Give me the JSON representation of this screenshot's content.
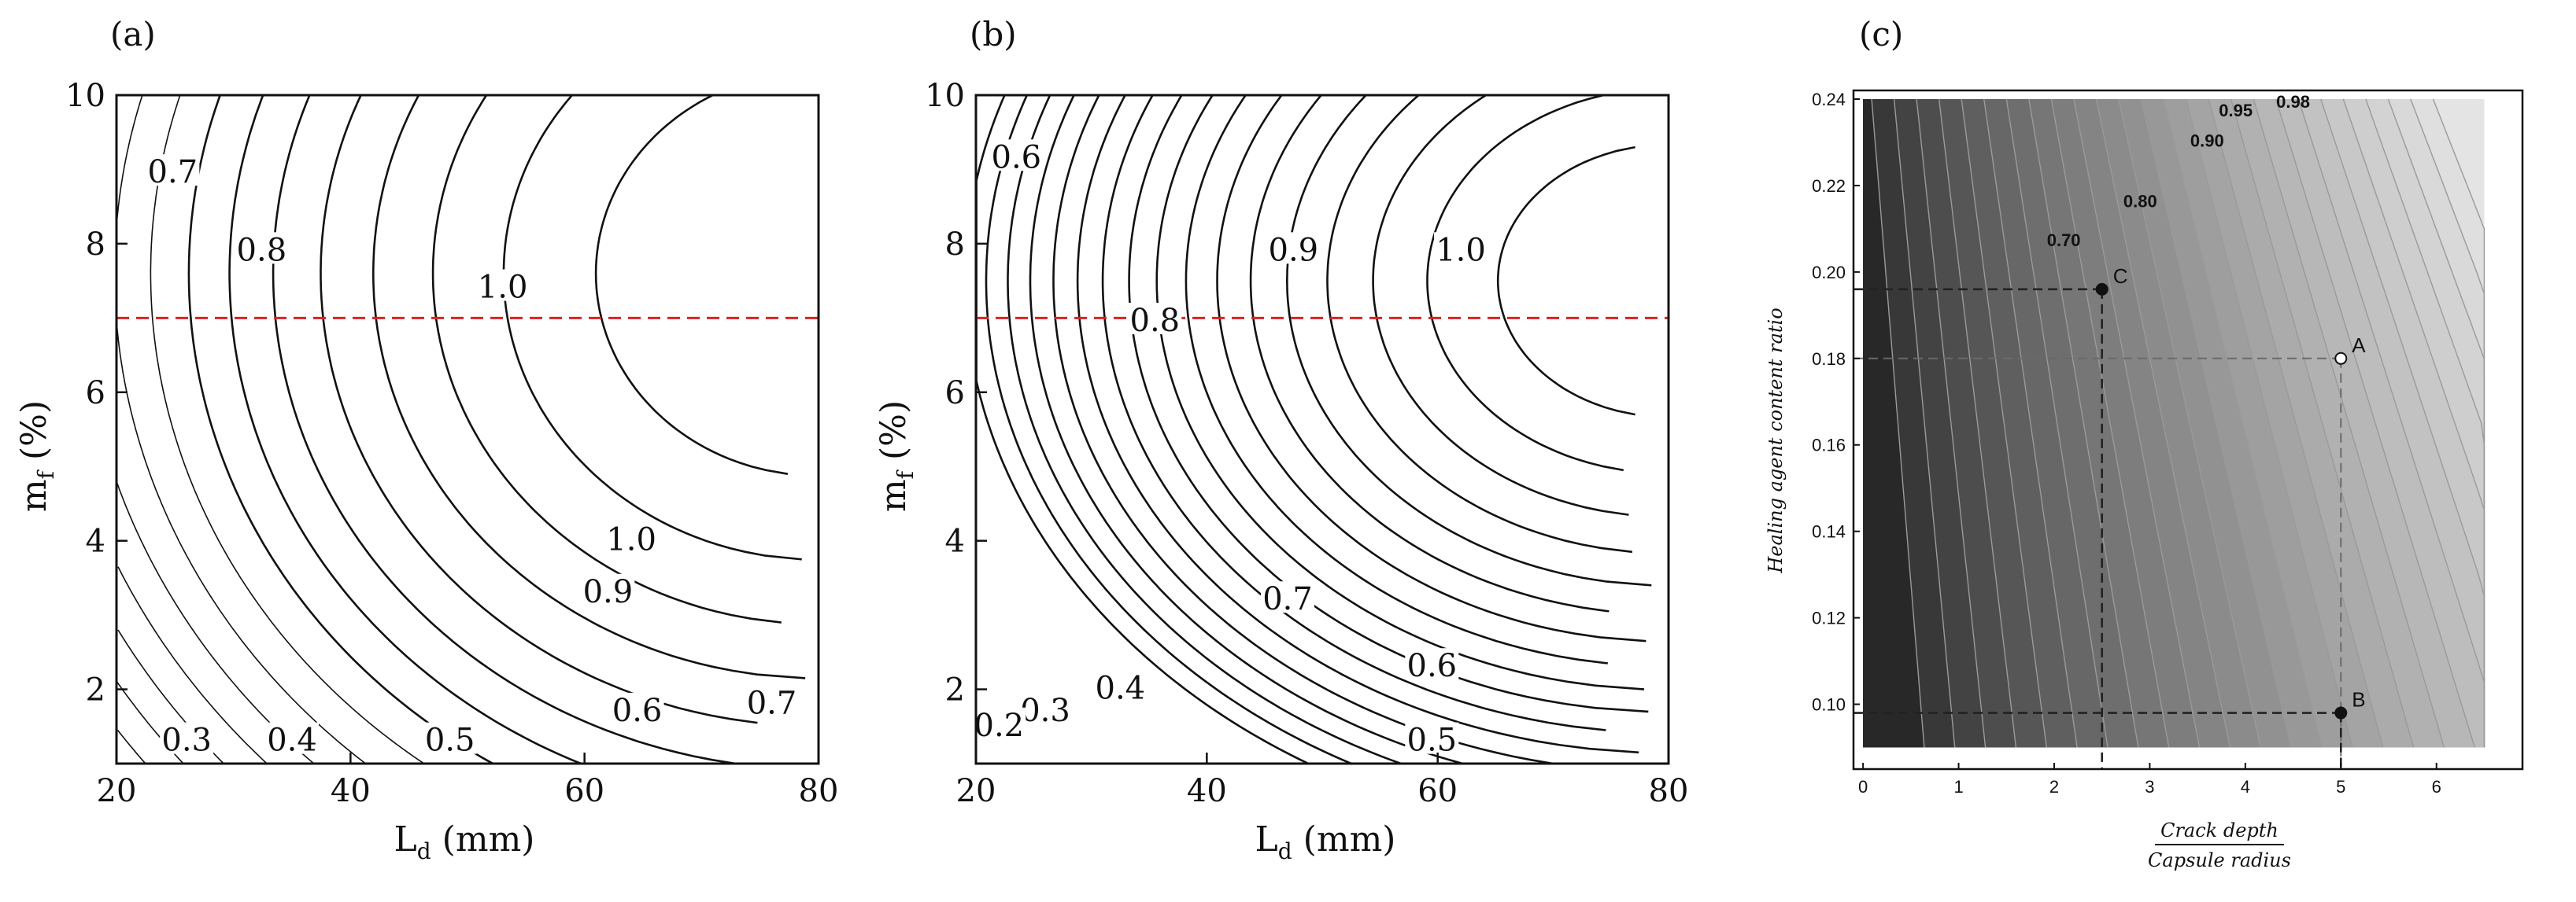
{
  "chart_data": [
    {
      "type": "contour",
      "panel_label": "(a)",
      "xlabel_main": "L",
      "xlabel_sub": "d",
      "xlabel_unit": " (mm)",
      "ylabel_main": "m",
      "ylabel_sub": "f",
      "ylabel_unit": " (%)",
      "xlim": [
        20,
        80
      ],
      "ylim": [
        1,
        10
      ],
      "xticks": [
        20,
        40,
        60,
        80
      ],
      "yticks": [
        2,
        4,
        6,
        8,
        10
      ],
      "reference_line": {
        "y": 7,
        "color": "#e02020",
        "style": "dashed"
      },
      "contour_labels": [
        {
          "text": "0.7",
          "x": 24.8,
          "y": 8.95
        },
        {
          "text": "0.8",
          "x": 32.4,
          "y": 7.9
        },
        {
          "text": "1.0",
          "x": 53.0,
          "y": 7.4
        },
        {
          "text": "1.0",
          "x": 64.0,
          "y": 4.0
        },
        {
          "text": "0.9",
          "x": 62.0,
          "y": 3.3
        },
        {
          "text": "0.6",
          "x": 64.5,
          "y": 1.7
        },
        {
          "text": "0.7",
          "x": 76.0,
          "y": 1.8
        },
        {
          "text": "0.3",
          "x": 26.0,
          "y": 1.3
        },
        {
          "text": "0.4",
          "x": 35.0,
          "y": 1.3
        },
        {
          "text": "0.5",
          "x": 48.5,
          "y": 1.3
        }
      ]
    },
    {
      "type": "contour",
      "panel_label": "(b)",
      "xlabel_main": "L",
      "xlabel_sub": "d",
      "xlabel_unit": " (mm)",
      "ylabel_main": "m",
      "ylabel_sub": "f",
      "ylabel_unit": " (%)",
      "xlim": [
        20,
        80
      ],
      "ylim": [
        1,
        10
      ],
      "xticks": [
        20,
        40,
        60,
        80
      ],
      "yticks": [
        2,
        4,
        6,
        8,
        10
      ],
      "reference_line": {
        "y": 7,
        "color": "#e02020",
        "style": "dashed"
      },
      "contour_labels": [
        {
          "text": "0.6",
          "x": 23.5,
          "y": 9.15
        },
        {
          "text": "0.9",
          "x": 47.5,
          "y": 7.9
        },
        {
          "text": "1.0",
          "x": 62.0,
          "y": 7.9
        },
        {
          "text": "0.8",
          "x": 35.5,
          "y": 6.95
        },
        {
          "text": "0.7",
          "x": 47.0,
          "y": 3.2
        },
        {
          "text": "0.6",
          "x": 59.5,
          "y": 2.3
        },
        {
          "text": "0.5",
          "x": 59.5,
          "y": 1.3
        },
        {
          "text": "0.4",
          "x": 32.5,
          "y": 2.0
        },
        {
          "text": "0.3",
          "x": 26.0,
          "y": 1.7
        },
        {
          "text": "0.2",
          "x": 22.0,
          "y": 1.5
        }
      ]
    },
    {
      "type": "contour",
      "panel_label": "(c)",
      "xlabel_top": "Crack depth",
      "xlabel_bottom": "Capsule radius",
      "ylabel": "Healing agent content ratio",
      "xlim": [
        -0.1,
        6.9
      ],
      "ylim": [
        0.085,
        0.242
      ],
      "xticks": [
        0,
        1,
        2,
        3,
        4,
        5,
        6
      ],
      "yticks": [
        0.1,
        0.12,
        0.14,
        0.16,
        0.18,
        0.2,
        0.22,
        0.24
      ],
      "xtick_labels": [
        "0",
        "1",
        "2",
        "3",
        "4",
        "5",
        "6"
      ],
      "ytick_labels": [
        "0.10",
        "0.12",
        "0.14",
        "0.16",
        "0.18",
        "0.20",
        "0.22",
        "0.24"
      ],
      "contour_labels": [
        {
          "text": "0.70",
          "x": 2.1,
          "y": 0.206
        },
        {
          "text": "0.80",
          "x": 2.9,
          "y": 0.215
        },
        {
          "text": "0.90",
          "x": 3.6,
          "y": 0.229
        },
        {
          "text": "0.95",
          "x": 3.9,
          "y": 0.236
        },
        {
          "text": "0.98",
          "x": 4.5,
          "y": 0.238
        }
      ],
      "points": [
        {
          "label": "A",
          "x": 5.0,
          "y": 0.18,
          "filled": false
        },
        {
          "label": "B",
          "x": 5.0,
          "y": 0.098,
          "filled": true
        },
        {
          "label": "C",
          "x": 2.5,
          "y": 0.196,
          "filled": true
        }
      ]
    }
  ]
}
